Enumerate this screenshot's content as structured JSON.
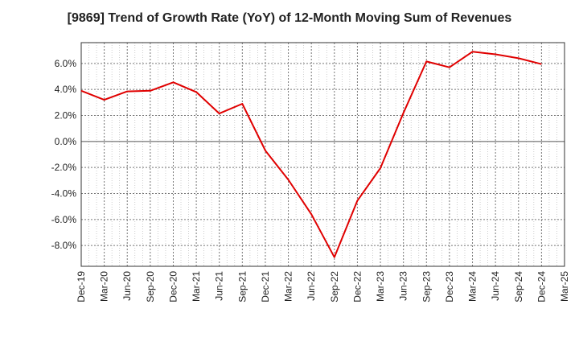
{
  "chart_data": {
    "type": "line",
    "title": "[9869]  Trend of Growth Rate (YoY) of 12-Month Moving Sum of Revenues",
    "xlabel": "",
    "ylabel": "",
    "x_tick_labels": [
      "Dec-19",
      "Mar-20",
      "Jun-20",
      "Sep-20",
      "Dec-20",
      "Mar-21",
      "Jun-21",
      "Sep-21",
      "Dec-21",
      "Mar-22",
      "Jun-22",
      "Sep-22",
      "Dec-22",
      "Mar-23",
      "Jun-23",
      "Sep-23",
      "Dec-23",
      "Mar-24",
      "Jun-24",
      "Sep-24",
      "Dec-24",
      "Mar-25"
    ],
    "y_tick_labels": [
      "6.0%",
      "4.0%",
      "2.0%",
      "0.0%",
      "-2.0%",
      "-4.0%",
      "-6.0%",
      "-8.0%"
    ],
    "y_ticks": [
      6,
      4,
      2,
      0,
      -2,
      -4,
      -6,
      -8
    ],
    "ylim": [
      -9.6,
      7.6
    ],
    "grid": true,
    "series": [
      {
        "color": "#e00000",
        "x": [
          "Dec-19",
          "Mar-20",
          "Jun-20",
          "Sep-20",
          "Dec-20",
          "Mar-21",
          "Jun-21",
          "Sep-21",
          "Dec-21",
          "Mar-22",
          "Jun-22",
          "Sep-22",
          "Dec-22",
          "Mar-23",
          "Jun-23",
          "Sep-23",
          "Dec-23",
          "Mar-24",
          "Jun-24",
          "Sep-24",
          "Dec-24"
        ],
        "values": [
          3.9,
          3.2,
          3.85,
          3.9,
          4.55,
          3.8,
          2.15,
          2.9,
          -0.7,
          -2.95,
          -5.6,
          -8.9,
          -4.55,
          -2.05,
          2.2,
          6.15,
          5.7,
          6.9,
          6.7,
          6.4,
          5.95
        ]
      }
    ]
  }
}
